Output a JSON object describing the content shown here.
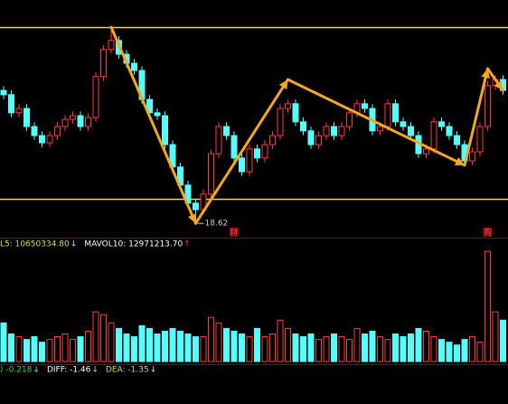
{
  "chart_data": {
    "type": "candlestick",
    "ylim": [
      18.25,
      24.8
    ],
    "open": [
      22.3,
      22.18,
      21.68,
      21.8,
      21.3,
      21.05,
      20.85,
      21.05,
      21.3,
      21.5,
      21.6,
      21.3,
      21.55,
      22.68,
      23.43,
      23.68,
      23.3,
      23.05,
      22.85,
      22.05,
      21.68,
      21.6,
      20.8,
      20.18,
      19.68,
      19.18,
      19.0,
      19.43,
      20.55,
      21.3,
      21.05,
      20.43,
      20.05,
      20.68,
      20.43,
      20.8,
      21.05,
      21.8,
      21.93,
      21.43,
      21.18,
      20.8,
      21.05,
      21.3,
      21.05,
      21.3,
      21.68,
      21.93,
      21.8,
      21.18,
      21.3,
      21.93,
      21.43,
      21.3,
      21.05,
      20.55,
      20.68,
      21.43,
      21.3,
      21.05,
      20.8,
      20.35,
      20.6,
      21.3,
      22.43,
      22.6
    ],
    "high": [
      22.42,
      22.3,
      21.92,
      21.92,
      21.42,
      21.17,
      21.17,
      21.42,
      21.62,
      21.72,
      21.72,
      21.67,
      22.8,
      23.55,
      24.05,
      23.8,
      23.42,
      23.17,
      22.97,
      22.17,
      21.8,
      21.72,
      20.92,
      20.3,
      19.8,
      19.3,
      19.55,
      20.67,
      21.42,
      21.42,
      21.17,
      20.55,
      20.8,
      20.8,
      20.92,
      21.17,
      21.92,
      22.05,
      22.05,
      21.55,
      21.3,
      21.17,
      21.42,
      21.42,
      21.42,
      21.8,
      22.05,
      22.05,
      21.92,
      21.42,
      22.05,
      22.05,
      21.55,
      21.42,
      21.17,
      20.8,
      21.55,
      21.55,
      21.42,
      21.17,
      20.92,
      20.72,
      21.42,
      22.55,
      22.72,
      22.72
    ],
    "low": [
      22.06,
      21.56,
      21.56,
      21.18,
      20.93,
      20.73,
      20.73,
      20.93,
      21.18,
      21.38,
      21.18,
      21.18,
      21.43,
      22.56,
      23.31,
      23.18,
      22.93,
      22.73,
      21.93,
      21.56,
      21.48,
      20.68,
      20.06,
      19.56,
      19.06,
      18.62,
      18.88,
      19.31,
      20.43,
      20.93,
      20.31,
      19.93,
      19.93,
      20.31,
      20.31,
      20.68,
      20.93,
      21.68,
      21.31,
      21.06,
      20.68,
      20.68,
      20.93,
      20.93,
      20.93,
      21.18,
      21.56,
      21.68,
      21.06,
      21.06,
      21.18,
      21.31,
      21.18,
      20.93,
      20.43,
      20.43,
      20.56,
      21.18,
      20.93,
      20.68,
      20.23,
      20.23,
      20.48,
      21.18,
      22.31,
      22.18
    ],
    "close": [
      22.18,
      21.68,
      21.8,
      21.3,
      21.05,
      20.85,
      21.05,
      21.3,
      21.5,
      21.6,
      21.3,
      21.55,
      22.68,
      23.43,
      23.68,
      23.3,
      23.05,
      22.85,
      22.05,
      21.68,
      21.6,
      20.8,
      20.18,
      19.68,
      19.18,
      19.0,
      19.43,
      20.55,
      21.3,
      21.05,
      20.43,
      20.05,
      20.68,
      20.43,
      20.8,
      21.05,
      21.8,
      21.93,
      21.43,
      21.18,
      20.8,
      21.05,
      21.3,
      21.05,
      21.3,
      21.68,
      21.93,
      21.8,
      21.18,
      21.3,
      21.93,
      21.43,
      21.3,
      21.05,
      20.55,
      20.68,
      21.43,
      21.3,
      21.05,
      20.8,
      20.35,
      20.6,
      21.3,
      22.43,
      22.6,
      22.3
    ],
    "volume_ylim": [
      0,
      40000000
    ],
    "volume": [
      14000000,
      10000000,
      9000000,
      8000000,
      9000000,
      7000000,
      8000000,
      9000000,
      10000000,
      8000000,
      9000000,
      11000000,
      18000000,
      17000000,
      14000000,
      12000000,
      10000000,
      9000000,
      13000000,
      12000000,
      10000000,
      11000000,
      12000000,
      11000000,
      10000000,
      9000000,
      9000000,
      16000000,
      14000000,
      12000000,
      11000000,
      10000000,
      9000000,
      12000000,
      9000000,
      10000000,
      15000000,
      12000000,
      10000000,
      9000000,
      10000000,
      8000000,
      9000000,
      10000000,
      9000000,
      8000000,
      12000000,
      10000000,
      11000000,
      9000000,
      8000000,
      10000000,
      9000000,
      10000000,
      12000000,
      11000000,
      9000000,
      8000000,
      7000000,
      6000000,
      8000000,
      9000000,
      7000000,
      40000000,
      18000000,
      15000000
    ],
    "up_color": "#ff3b3b",
    "down_color": "#54ffff",
    "levels": [
      24.05,
      19.3
    ],
    "level_color": "#e8d25a",
    "trend_line": [
      {
        "index": 14,
        "price": 24.05
      },
      {
        "index": 25,
        "price": 18.62
      },
      {
        "index": 37,
        "price": 22.6
      },
      {
        "index": 60,
        "price": 20.23
      },
      {
        "index": 63,
        "price": 22.9
      },
      {
        "index": 65,
        "price": 22.3
      }
    ],
    "trend_color": "#f5a623",
    "low_label_index": 25,
    "events": [
      {
        "index": 30,
        "label": "财"
      },
      {
        "index": 63,
        "label": "购"
      }
    ],
    "volume_legend": [
      {
        "text": "L5: 10650334.80",
        "arrow": "↓"
      },
      {
        "text": "MAVOL10: 12971213.70",
        "arrow": "↑"
      }
    ],
    "macd_legend": [
      {
        "text": ") -0.218",
        "arrow": "↓"
      },
      {
        "text": "DIFF: -1.46",
        "arrow": "↓"
      },
      {
        "text": "DEA: -1.35",
        "arrow": "↓"
      }
    ]
  }
}
